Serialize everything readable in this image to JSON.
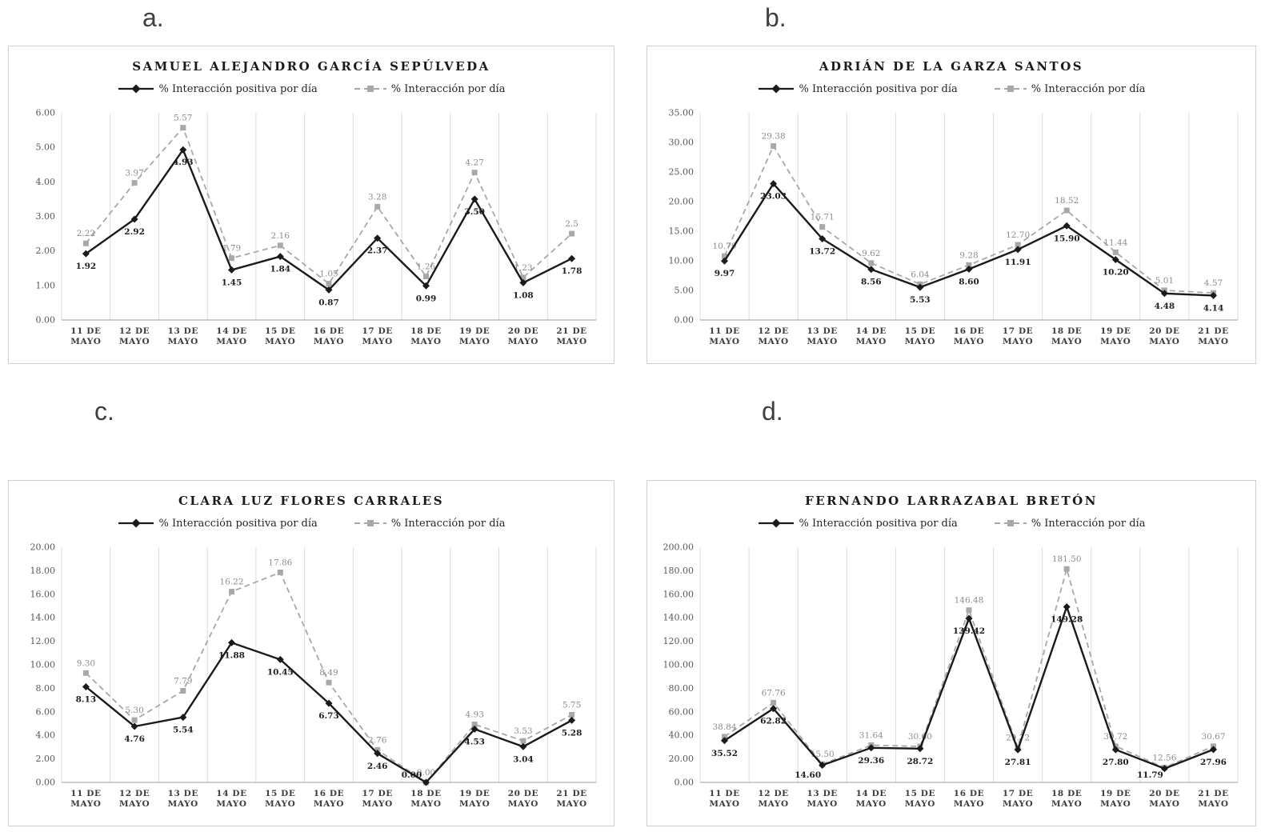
{
  "colors": {
    "positive_line": "#1a1a1a",
    "total_line": "#a8a8a8",
    "grid": "#dcdcdc",
    "axis": "#9e9e9e",
    "positive_label": "#1f1f1f",
    "total_label": "#8c8c8c",
    "panel_border": "#d0d0d0"
  },
  "chart_data": [
    {
      "type": "line",
      "panel_label": "a.",
      "title": "SAMUEL ALEJANDRO GARCÍA SEPÚLVEDA",
      "categories": [
        "11 DE MAYO",
        "12 DE MAYO",
        "13 DE MAYO",
        "14 DE MAYO",
        "15 DE MAYO",
        "16 DE MAYO",
        "17 DE MAYO",
        "18 DE MAYO",
        "19 DE MAYO",
        "20 DE MAYO",
        "21 DE MAYO"
      ],
      "series": [
        {
          "name": "% Interacción positiva por día",
          "style": "solid-black-diamond",
          "values": [
            1.92,
            2.92,
            4.93,
            1.45,
            1.84,
            0.87,
            2.37,
            0.99,
            3.5,
            1.08,
            1.78
          ],
          "labels": [
            "1.92",
            "2.92",
            "4.93",
            "1.45",
            "1.84",
            "0.87",
            "2.37",
            "0.99",
            "3.50",
            "1.08",
            "1.78"
          ]
        },
        {
          "name": "% Interacción por día",
          "style": "dashed-gray-square",
          "values": [
            2.22,
            3.97,
            5.57,
            1.79,
            2.16,
            1.05,
            3.28,
            1.26,
            4.27,
            1.23,
            2.5
          ],
          "labels": [
            "2.22",
            "3.97",
            "5.57",
            "1.79",
            "2.16",
            "1.05",
            "3.28",
            "1.26",
            "4.27",
            "1.23",
            "2.5"
          ]
        }
      ],
      "ylim": [
        0,
        6
      ],
      "ytick_step": 1,
      "grid": "vertical-only",
      "legend_position": "top",
      "xlabel": "",
      "ylabel": ""
    },
    {
      "type": "line",
      "panel_label": "b.",
      "title": "ADRIÁN DE LA GARZA SANTOS",
      "categories": [
        "11 DE MAYO",
        "12 DE MAYO",
        "13 DE MAYO",
        "14 DE MAYO",
        "15 DE MAYO",
        "16 DE MAYO",
        "17 DE MAYO",
        "18 DE MAYO",
        "19 DE MAYO",
        "20 DE MAYO",
        "21 DE MAYO"
      ],
      "series": [
        {
          "name": "% Interacción positiva por día",
          "style": "solid-black-diamond",
          "values": [
            9.97,
            23.03,
            13.72,
            8.56,
            5.53,
            8.6,
            11.91,
            15.9,
            10.2,
            4.48,
            4.14
          ],
          "labels": [
            "9.97",
            "23.03",
            "13.72",
            "8.56",
            "5.53",
            "8.60",
            "11.91",
            "15.90",
            "10.20",
            "4.48",
            "4.14"
          ]
        },
        {
          "name": "% Interacción por día",
          "style": "dashed-gray-square",
          "values": [
            10.79,
            29.38,
            15.71,
            9.62,
            6.04,
            9.28,
            12.7,
            18.52,
            11.44,
            5.01,
            4.57
          ],
          "labels": [
            "10.79",
            "29.38",
            "15.71",
            "9.62",
            "6.04",
            "9.28",
            "12.70",
            "18.52",
            "11.44",
            "5.01",
            "4.57"
          ]
        }
      ],
      "ylim": [
        0,
        35
      ],
      "ytick_step": 5,
      "grid": "vertical-only",
      "legend_position": "top",
      "xlabel": "",
      "ylabel": ""
    },
    {
      "type": "line",
      "panel_label": "c.",
      "title": "CLARA LUZ FLORES CARRALES",
      "categories": [
        "11 DE MAYO",
        "12 DE MAYO",
        "13 DE MAYO",
        "14 DE MAYO",
        "15 DE MAYO",
        "16 DE MAYO",
        "17 DE MAYO",
        "18 DE MAYO",
        "19 DE MAYO",
        "20 DE MAYO",
        "21 DE MAYO"
      ],
      "series": [
        {
          "name": "% Interacción positiva por día",
          "style": "solid-black-diamond",
          "values": [
            8.13,
            4.76,
            5.54,
            11.88,
            10.45,
            6.73,
            2.46,
            0.0,
            4.53,
            3.04,
            5.28
          ],
          "labels": [
            "8.13",
            "4.76",
            "5.54",
            "11.88",
            "10.45",
            "6.73",
            "2.46",
            "0.00",
            "4.53",
            "3.04",
            "5.28"
          ]
        },
        {
          "name": "% Interacción por día",
          "style": "dashed-gray-square",
          "values": [
            9.3,
            5.3,
            7.79,
            16.22,
            17.86,
            8.49,
            2.76,
            0.0,
            4.93,
            3.53,
            5.75
          ],
          "labels": [
            "9.30",
            "5.30",
            "7.79",
            "16.22",
            "17.86",
            "8.49",
            "2.76",
            "0.00",
            "4.93",
            "3.53",
            "5.75"
          ]
        }
      ],
      "ylim": [
        0,
        20
      ],
      "ytick_step": 2,
      "grid": "vertical-only",
      "legend_position": "top",
      "xlabel": "",
      "ylabel": ""
    },
    {
      "type": "line",
      "panel_label": "d.",
      "title": "FERNANDO LARRAZABAL BRETÓN",
      "categories": [
        "11 DE MAYO",
        "12 DE MAYO",
        "13 DE MAYO",
        "14 DE MAYO",
        "15 DE MAYO",
        "16 DE MAYO",
        "17 DE MAYO",
        "18 DE MAYO",
        "19 DE MAYO",
        "20 DE MAYO",
        "21 DE MAYO"
      ],
      "series": [
        {
          "name": "% Interacción positiva por día",
          "style": "solid-black-diamond",
          "values": [
            35.52,
            62.82,
            14.6,
            29.36,
            28.72,
            139.42,
            27.81,
            149.28,
            27.8,
            11.79,
            27.96
          ],
          "labels": [
            "35.52",
            "62.82",
            "14.60",
            "29.36",
            "28.72",
            "139.42",
            "27.81",
            "149.28",
            "27.80",
            "11.79",
            "27.96"
          ]
        },
        {
          "name": "% Interacción por día",
          "style": "dashed-gray-square",
          "values": [
            38.84,
            67.76,
            15.5,
            31.64,
            30.6,
            146.48,
            29.72,
            181.5,
            30.72,
            12.56,
            30.67
          ],
          "labels": [
            "38.84",
            "67.76",
            "15.50",
            "31.64",
            "30.60",
            "146.48",
            "29.72",
            "181.50",
            "30.72",
            "12.56",
            "30.67"
          ]
        }
      ],
      "ylim": [
        0,
        200
      ],
      "ytick_step": 20,
      "grid": "vertical-only",
      "legend_position": "top",
      "xlabel": "",
      "ylabel": ""
    }
  ]
}
